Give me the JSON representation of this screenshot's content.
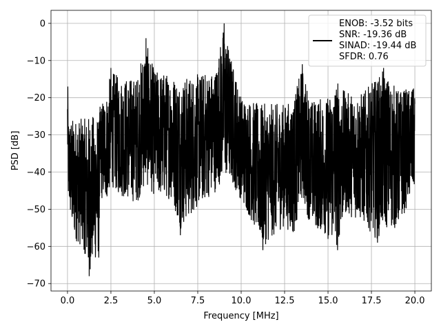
{
  "chart_data": {
    "type": "line",
    "title": "",
    "xlabel": "Frequency [MHz]",
    "ylabel": "PSD [dB]",
    "xlim": [
      -0.95,
      20.95
    ],
    "ylim": [
      -72,
      3.5
    ],
    "xticks": [
      0.0,
      2.5,
      5.0,
      7.5,
      10.0,
      12.5,
      15.0,
      17.5,
      20.0
    ],
    "xtick_labels": [
      "0.0",
      "2.5",
      "5.0",
      "7.5",
      "10.0",
      "12.5",
      "15.0",
      "17.5",
      "20.0"
    ],
    "yticks": [
      0,
      -10,
      -20,
      -30,
      -40,
      -50,
      -60,
      -70
    ],
    "ytick_labels": [
      "0",
      "−10",
      "−20",
      "−30",
      "−40",
      "−50",
      "−60",
      "−70"
    ],
    "grid": true,
    "legend_position": "top-right",
    "series": [
      {
        "color": "#000000",
        "x_start": 0.0,
        "x_end": 20.0,
        "envelope": [
          {
            "x": 0.0,
            "upper": -17,
            "lower": -36
          },
          {
            "x": 0.05,
            "upper": -25,
            "lower": -49
          },
          {
            "x": 0.3,
            "upper": -25,
            "lower": -58
          },
          {
            "x": 1.0,
            "upper": -25,
            "lower": -62
          },
          {
            "x": 1.2,
            "upper": -24,
            "lower": -68
          },
          {
            "x": 1.8,
            "upper": -24,
            "lower": -63
          },
          {
            "x": 1.9,
            "upper": -21,
            "lower": -48
          },
          {
            "x": 2.3,
            "upper": -18,
            "lower": -48
          },
          {
            "x": 2.5,
            "upper": -12,
            "lower": -44
          },
          {
            "x": 3.0,
            "upper": -14,
            "lower": -47
          },
          {
            "x": 4.0,
            "upper": -14,
            "lower": -49
          },
          {
            "x": 4.5,
            "upper": -4,
            "lower": -44
          },
          {
            "x": 5.0,
            "upper": -12,
            "lower": -47
          },
          {
            "x": 6.0,
            "upper": -13,
            "lower": -48
          },
          {
            "x": 6.5,
            "upper": -14,
            "lower": -56
          },
          {
            "x": 7.5,
            "upper": -13,
            "lower": -50
          },
          {
            "x": 8.5,
            "upper": -12,
            "lower": -46
          },
          {
            "x": 9.0,
            "upper": 0,
            "lower": -42
          },
          {
            "x": 9.5,
            "upper": -10,
            "lower": -44
          },
          {
            "x": 10.0,
            "upper": -19,
            "lower": -48
          },
          {
            "x": 11.0,
            "upper": -21,
            "lower": -58
          },
          {
            "x": 11.2,
            "upper": -21,
            "lower": -61
          },
          {
            "x": 12.5,
            "upper": -21,
            "lower": -55
          },
          {
            "x": 13.0,
            "upper": -20,
            "lower": -58
          },
          {
            "x": 13.5,
            "upper": -11,
            "lower": -48
          },
          {
            "x": 14.0,
            "upper": -20,
            "lower": -55
          },
          {
            "x": 15.0,
            "upper": -19,
            "lower": -58
          },
          {
            "x": 15.5,
            "upper": -14,
            "lower": -61
          },
          {
            "x": 16.0,
            "upper": -18,
            "lower": -52
          },
          {
            "x": 17.0,
            "upper": -18,
            "lower": -54
          },
          {
            "x": 17.8,
            "upper": -14,
            "lower": -59
          },
          {
            "x": 18.2,
            "upper": -12,
            "lower": -56
          },
          {
            "x": 19.0,
            "upper": -17,
            "lower": -56
          },
          {
            "x": 20.0,
            "upper": -17,
            "lower": -45
          }
        ],
        "spikes": [
          {
            "x": 0.02,
            "y": -17
          },
          {
            "x": 1.25,
            "y": -68
          },
          {
            "x": 1.0,
            "y": -62
          },
          {
            "x": 1.8,
            "y": -63
          },
          {
            "x": 2.5,
            "y": -12
          },
          {
            "x": 4.52,
            "y": -4
          },
          {
            "x": 6.5,
            "y": -57
          },
          {
            "x": 9.02,
            "y": 0
          },
          {
            "x": 11.25,
            "y": -61
          },
          {
            "x": 13.52,
            "y": -11
          },
          {
            "x": 15.0,
            "y": -58
          },
          {
            "x": 15.55,
            "y": -61
          },
          {
            "x": 17.85,
            "y": -59
          },
          {
            "x": 18.2,
            "y": -12
          }
        ]
      }
    ]
  },
  "legend": {
    "lines": [
      "ENOB: -3.52 bits",
      "SNR: -19.36 dB",
      "SINAD: -19.44 dB",
      "SFDR: 0.76"
    ]
  }
}
